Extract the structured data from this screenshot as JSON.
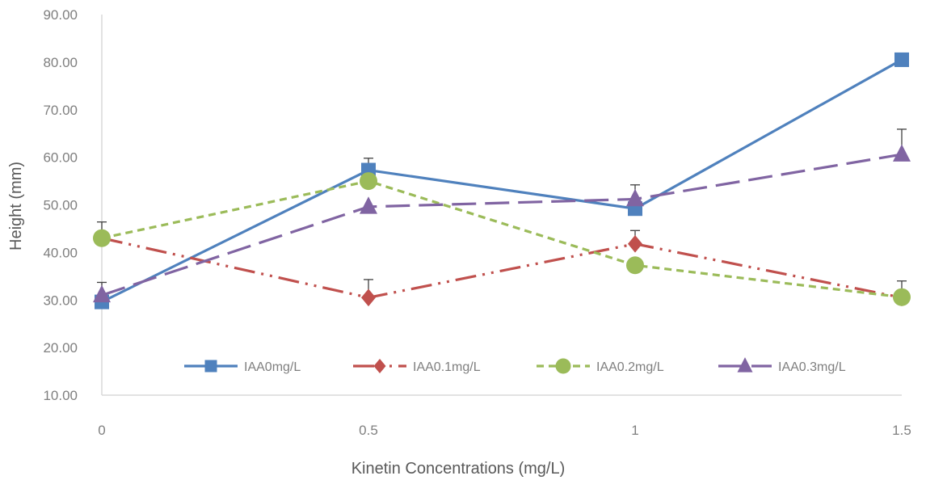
{
  "chart_data": {
    "type": "line",
    "title": "",
    "xlabel": "Kinetin Concentrations (mg/L)",
    "ylabel": "Height (mm)",
    "categories": [
      "0",
      "0.5",
      "1",
      "1.5"
    ],
    "y_ticks": [
      "10.00",
      "20.00",
      "30.00",
      "40.00",
      "50.00",
      "60.00",
      "70.00",
      "80.00",
      "90.00"
    ],
    "ylim": [
      10,
      90
    ],
    "grid": false,
    "legend_position": "bottom-inside",
    "series": [
      {
        "name": "IAA0mg/L",
        "values": [
          29.6,
          57.3,
          49.2,
          80.5
        ],
        "error_upper": [
          null,
          2.5,
          null,
          null
        ],
        "color": "#4f81bd",
        "dash": "solid",
        "marker": "square"
      },
      {
        "name": "IAA0.1mg/L",
        "values": [
          43.0,
          30.5,
          41.8,
          30.5
        ],
        "error_upper": [
          3.4,
          3.8,
          2.8,
          null
        ],
        "color": "#c0504d",
        "dash": "long-dash-dot-dot",
        "marker": "diamond"
      },
      {
        "name": "IAA0.2mg/L",
        "values": [
          43.0,
          55.0,
          37.3,
          30.6
        ],
        "error_upper": [
          null,
          null,
          null,
          3.4
        ],
        "color": "#9bbb59",
        "dash": "short-dash",
        "marker": "circle"
      },
      {
        "name": "IAA0.3mg/L",
        "values": [
          31.0,
          49.6,
          51.2,
          60.6
        ],
        "error_upper": [
          2.7,
          null,
          3.0,
          5.3
        ],
        "color": "#8064a2",
        "dash": "long-dash",
        "marker": "triangle"
      }
    ]
  }
}
